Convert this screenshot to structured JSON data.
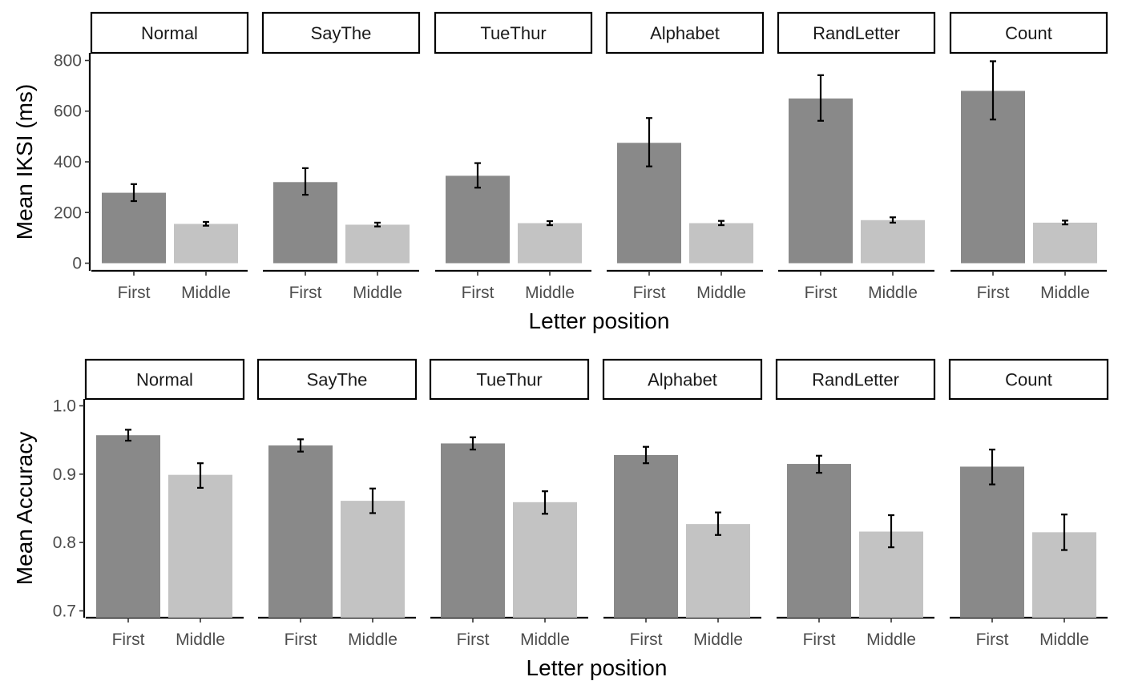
{
  "chart_data": [
    {
      "type": "bar",
      "panel": "top",
      "facets": [
        "Normal",
        "SayThe",
        "TueThur",
        "Alphabet",
        "RandLetter",
        "Count"
      ],
      "categories": [
        "First",
        "Middle"
      ],
      "xlabel": "Letter position",
      "ylabel": "Mean IKSI (ms)",
      "ylim": [
        -30,
        830
      ],
      "yticks": [
        0,
        200,
        400,
        600,
        800
      ],
      "bar_colors": [
        "#898989",
        "#c3c3c3"
      ],
      "series": [
        {
          "facet": "Normal",
          "values": [
            278,
            155
          ],
          "errors": [
            [
              245,
              312
            ],
            [
              148,
              163
            ]
          ]
        },
        {
          "facet": "SayThe",
          "values": [
            320,
            152
          ],
          "errors": [
            [
              270,
              375
            ],
            [
              145,
              160
            ]
          ]
        },
        {
          "facet": "TueThur",
          "values": [
            345,
            158
          ],
          "errors": [
            [
              298,
              395
            ],
            [
              150,
              166
            ]
          ]
        },
        {
          "facet": "Alphabet",
          "values": [
            475,
            158
          ],
          "errors": [
            [
              382,
              573
            ],
            [
              150,
              167
            ]
          ]
        },
        {
          "facet": "RandLetter",
          "values": [
            650,
            170
          ],
          "errors": [
            [
              562,
              742
            ],
            [
              160,
              181
            ]
          ]
        },
        {
          "facet": "Count",
          "values": [
            680,
            160
          ],
          "errors": [
            [
              567,
              797
            ],
            [
              153,
              168
            ]
          ]
        }
      ]
    },
    {
      "type": "bar",
      "panel": "bottom",
      "facets": [
        "Normal",
        "SayThe",
        "TueThur",
        "Alphabet",
        "RandLetter",
        "Count"
      ],
      "categories": [
        "First",
        "Middle"
      ],
      "xlabel": "Letter position",
      "ylabel": "Mean Accuracy",
      "ylim": [
        0.69,
        1.01
      ],
      "yticks": [
        "0.7",
        "0.8",
        "0.9",
        "1.0"
      ],
      "bar_colors": [
        "#898989",
        "#c3c3c3"
      ],
      "series": [
        {
          "facet": "Normal",
          "values": [
            0.957,
            0.899
          ],
          "errors": [
            [
              0.949,
              0.965
            ],
            [
              0.88,
              0.916
            ]
          ]
        },
        {
          "facet": "SayThe",
          "values": [
            0.942,
            0.861
          ],
          "errors": [
            [
              0.933,
              0.951
            ],
            [
              0.843,
              0.879
            ]
          ]
        },
        {
          "facet": "TueThur",
          "values": [
            0.945,
            0.859
          ],
          "errors": [
            [
              0.936,
              0.954
            ],
            [
              0.842,
              0.875
            ]
          ]
        },
        {
          "facet": "Alphabet",
          "values": [
            0.928,
            0.827
          ],
          "errors": [
            [
              0.916,
              0.94
            ],
            [
              0.811,
              0.844
            ]
          ]
        },
        {
          "facet": "RandLetter",
          "values": [
            0.915,
            0.816
          ],
          "errors": [
            [
              0.902,
              0.927
            ],
            [
              0.793,
              0.84
            ]
          ]
        },
        {
          "facet": "Count",
          "values": [
            0.911,
            0.815
          ],
          "errors": [
            [
              0.885,
              0.936
            ],
            [
              0.789,
              0.841
            ]
          ]
        }
      ]
    }
  ]
}
